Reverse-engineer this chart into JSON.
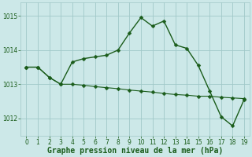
{
  "line1_x": [
    0,
    1,
    2,
    3,
    4,
    5,
    6,
    7,
    8,
    9,
    10,
    11,
    12,
    13,
    14,
    15,
    16,
    17,
    18,
    19
  ],
  "line1_y": [
    1013.5,
    1013.5,
    1013.2,
    1013.0,
    1013.65,
    1013.75,
    1013.8,
    1013.85,
    1014.0,
    1014.5,
    1014.95,
    1014.7,
    1014.85,
    1014.15,
    1014.05,
    1013.55,
    1012.8,
    1012.05,
    1011.78,
    1012.55
  ],
  "line2_x": [
    0,
    1,
    2,
    3,
    4,
    5,
    6,
    7,
    8,
    9,
    10,
    11,
    12,
    13,
    14,
    15,
    16,
    17,
    18,
    19
  ],
  "line2_y": [
    1013.5,
    1013.5,
    1013.2,
    1013.0,
    1013.0,
    1012.97,
    1012.93,
    1012.9,
    1012.87,
    1012.83,
    1012.8,
    1012.77,
    1012.73,
    1012.7,
    1012.68,
    1012.65,
    1012.65,
    1012.62,
    1012.6,
    1012.58
  ],
  "line_color": "#1a5c1a",
  "marker": "D",
  "marker_size": 2.5,
  "bg_color": "#cce8e8",
  "grid_color": "#a0c8c8",
  "xlabel": "Graphe pression niveau de la mer (hPa)",
  "xlabel_color": "#1a5c1a",
  "xlabel_fontsize": 7,
  "xlim": [
    -0.5,
    19.5
  ],
  "ylim": [
    1011.5,
    1015.4
  ],
  "yticks": [
    1012,
    1013,
    1014,
    1015
  ],
  "xticks": [
    0,
    1,
    2,
    3,
    4,
    5,
    6,
    7,
    8,
    9,
    10,
    11,
    12,
    13,
    14,
    15,
    16,
    17,
    18,
    19
  ],
  "tick_fontsize": 5.5,
  "linewidth1": 1.0,
  "linewidth2": 0.8
}
